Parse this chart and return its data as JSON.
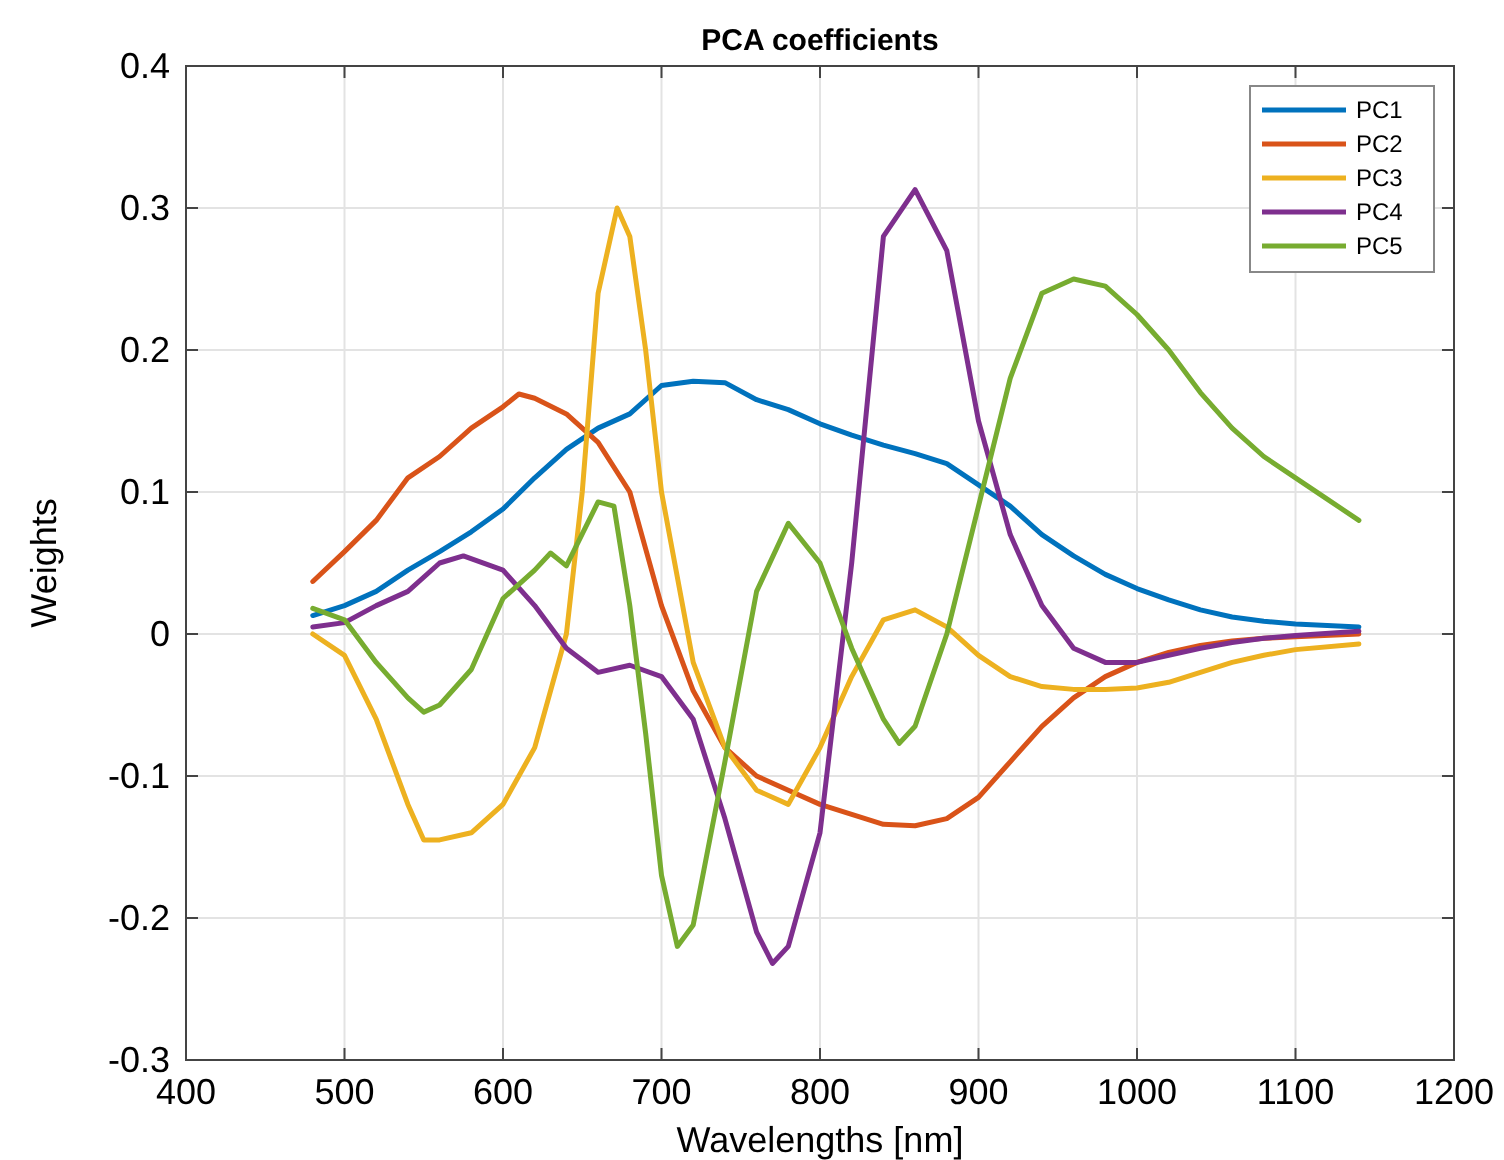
{
  "chart_data": {
    "type": "line",
    "title": "PCA coefficients",
    "xlabel": "Wavelengths [nm]",
    "ylabel": "Weights",
    "xlim": [
      400,
      1200
    ],
    "xticks": [
      400,
      500,
      600,
      700,
      800,
      900,
      1000,
      1100,
      1200
    ],
    "ylim": [
      -0.3,
      0.4
    ],
    "yticks": [
      -0.3,
      -0.2,
      -0.1,
      0,
      0.1,
      0.2,
      0.3,
      0.4
    ],
    "grid": true,
    "legend": "top right",
    "line_style": "solid",
    "marker": "none",
    "series": [
      {
        "name": "PC1",
        "color": "#0072bd",
        "x": [
          480,
          500,
          520,
          540,
          560,
          580,
          600,
          620,
          640,
          660,
          680,
          700,
          720,
          740,
          760,
          780,
          800,
          820,
          840,
          860,
          880,
          900,
          920,
          940,
          960,
          980,
          1000,
          1020,
          1040,
          1060,
          1080,
          1100,
          1120,
          1140
        ],
        "values": [
          0.013,
          0.02,
          0.03,
          0.045,
          0.058,
          0.072,
          0.088,
          0.11,
          0.13,
          0.145,
          0.155,
          0.175,
          0.178,
          0.177,
          0.165,
          0.158,
          0.148,
          0.14,
          0.133,
          0.127,
          0.12,
          0.105,
          0.09,
          0.07,
          0.055,
          0.042,
          0.032,
          0.024,
          0.017,
          0.012,
          0.009,
          0.007,
          0.006,
          0.005
        ]
      },
      {
        "name": "PC2",
        "color": "#d95319",
        "x": [
          480,
          500,
          520,
          540,
          560,
          580,
          600,
          610,
          620,
          640,
          660,
          680,
          690,
          700,
          720,
          740,
          760,
          780,
          800,
          820,
          840,
          860,
          880,
          900,
          920,
          940,
          960,
          980,
          1000,
          1020,
          1040,
          1060,
          1080,
          1100,
          1140
        ],
        "values": [
          0.037,
          0.058,
          0.08,
          0.11,
          0.125,
          0.145,
          0.16,
          0.169,
          0.166,
          0.155,
          0.135,
          0.1,
          0.06,
          0.02,
          -0.04,
          -0.08,
          -0.1,
          -0.11,
          -0.12,
          -0.127,
          -0.134,
          -0.135,
          -0.13,
          -0.115,
          -0.09,
          -0.065,
          -0.045,
          -0.03,
          -0.02,
          -0.013,
          -0.008,
          -0.005,
          -0.003,
          -0.002,
          0
        ]
      },
      {
        "name": "PC3",
        "color": "#edb120",
        "x": [
          480,
          500,
          520,
          540,
          550,
          560,
          580,
          600,
          620,
          640,
          650,
          660,
          672,
          680,
          690,
          700,
          720,
          740,
          760,
          780,
          800,
          820,
          840,
          860,
          880,
          900,
          920,
          940,
          960,
          980,
          1000,
          1020,
          1040,
          1060,
          1080,
          1100,
          1140
        ],
        "values": [
          0,
          -0.015,
          -0.06,
          -0.12,
          -0.145,
          -0.145,
          -0.14,
          -0.12,
          -0.08,
          0,
          0.1,
          0.24,
          0.3,
          0.28,
          0.2,
          0.1,
          -0.02,
          -0.08,
          -0.11,
          -0.12,
          -0.08,
          -0.03,
          0.01,
          0.017,
          0.005,
          -0.015,
          -0.03,
          -0.037,
          -0.039,
          -0.039,
          -0.038,
          -0.034,
          -0.027,
          -0.02,
          -0.015,
          -0.011,
          -0.007
        ]
      },
      {
        "name": "PC4",
        "color": "#7e2f8e",
        "x": [
          480,
          500,
          520,
          540,
          560,
          575,
          600,
          620,
          640,
          660,
          680,
          700,
          720,
          740,
          760,
          770,
          780,
          800,
          820,
          840,
          860,
          880,
          900,
          920,
          940,
          960,
          980,
          1000,
          1020,
          1040,
          1060,
          1080,
          1100,
          1140
        ],
        "values": [
          0.005,
          0.008,
          0.02,
          0.03,
          0.05,
          0.055,
          0.045,
          0.02,
          -0.01,
          -0.027,
          -0.022,
          -0.03,
          -0.06,
          -0.13,
          -0.21,
          -0.232,
          -0.22,
          -0.14,
          0.05,
          0.28,
          0.313,
          0.27,
          0.15,
          0.07,
          0.02,
          -0.01,
          -0.02,
          -0.02,
          -0.015,
          -0.01,
          -0.006,
          -0.003,
          -0.001,
          0.002
        ]
      },
      {
        "name": "PC5",
        "color": "#77ac30",
        "x": [
          480,
          500,
          520,
          540,
          550,
          560,
          580,
          600,
          620,
          630,
          640,
          660,
          670,
          680,
          690,
          700,
          710,
          720,
          740,
          760,
          780,
          800,
          820,
          840,
          850,
          860,
          880,
          900,
          920,
          940,
          960,
          980,
          1000,
          1020,
          1040,
          1060,
          1080,
          1100,
          1120,
          1140
        ],
        "values": [
          0.018,
          0.01,
          -0.02,
          -0.045,
          -0.055,
          -0.05,
          -0.025,
          0.025,
          0.045,
          0.057,
          0.048,
          0.093,
          0.09,
          0.02,
          -0.07,
          -0.17,
          -0.22,
          -0.205,
          -0.09,
          0.03,
          0.078,
          0.05,
          -0.01,
          -0.06,
          -0.077,
          -0.065,
          0,
          0.09,
          0.18,
          0.24,
          0.25,
          0.245,
          0.225,
          0.2,
          0.17,
          0.145,
          0.125,
          0.11,
          0.095,
          0.08
        ]
      }
    ]
  }
}
